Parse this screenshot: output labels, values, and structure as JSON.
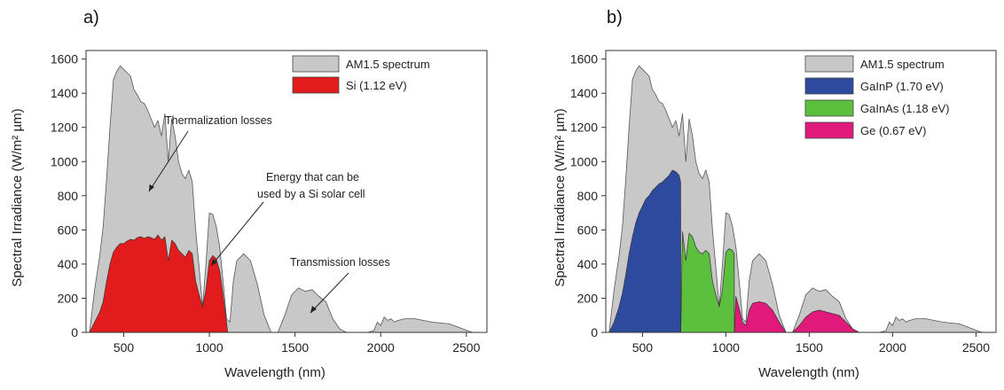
{
  "chart_data": [
    {
      "panel_label": "a)",
      "type": "area",
      "xlabel": "Wavelength (nm)",
      "ylabel": "Spectral Irradiance (W/m² µm)",
      "xlim": [
        280,
        2620
      ],
      "ylim": [
        0,
        1650
      ],
      "x_ticks": [
        500,
        1000,
        1500,
        2000,
        2500
      ],
      "y_ticks": [
        0,
        200,
        400,
        600,
        800,
        1000,
        1200,
        1400,
        1600
      ],
      "grid": false,
      "legend_position": "top-right",
      "series": [
        {
          "name": "AM1.5 spectrum",
          "color": "#c8c8c8",
          "x": [
            300,
            330,
            360,
            380,
            400,
            420,
            440,
            460,
            480,
            500,
            520,
            540,
            560,
            580,
            600,
            620,
            640,
            660,
            680,
            700,
            720,
            740,
            760,
            780,
            800,
            820,
            840,
            860,
            880,
            900,
            920,
            940,
            960,
            980,
            1000,
            1020,
            1040,
            1060,
            1080,
            1100,
            1120,
            1140,
            1160,
            1200,
            1240,
            1280,
            1320,
            1360,
            1400,
            1440,
            1480,
            1520,
            1560,
            1600,
            1640,
            1680,
            1720,
            1760,
            1800,
            1840,
            1880,
            1920,
            1960,
            1980,
            2000,
            2020,
            2040,
            2060,
            2080,
            2100,
            2140,
            2200,
            2300,
            2400,
            2480,
            2520,
            2540
          ],
          "y": [
            0,
            250,
            450,
            620,
            900,
            1200,
            1480,
            1530,
            1560,
            1540,
            1520,
            1500,
            1420,
            1390,
            1350,
            1340,
            1300,
            1250,
            1200,
            1240,
            1150,
            1280,
            1000,
            1250,
            1150,
            1000,
            930,
            900,
            950,
            880,
            600,
            380,
            150,
            400,
            700,
            690,
            620,
            500,
            300,
            80,
            60,
            300,
            420,
            460,
            420,
            280,
            100,
            0,
            0,
            100,
            220,
            260,
            240,
            250,
            210,
            180,
            80,
            20,
            0,
            0,
            0,
            0,
            10,
            60,
            40,
            90,
            70,
            80,
            60,
            70,
            80,
            80,
            60,
            50,
            20,
            5,
            0
          ]
        },
        {
          "name": "Si (1.12 eV)",
          "color": "#e21c1c",
          "x": [
            300,
            330,
            360,
            380,
            400,
            420,
            440,
            460,
            480,
            500,
            520,
            540,
            560,
            580,
            600,
            620,
            640,
            660,
            680,
            700,
            720,
            740,
            760,
            780,
            800,
            820,
            840,
            860,
            880,
            900,
            920,
            940,
            960,
            980,
            1000,
            1020,
            1040,
            1060,
            1080,
            1100,
            1107
          ],
          "y": [
            0,
            60,
            120,
            180,
            300,
            400,
            470,
            500,
            520,
            520,
            535,
            545,
            540,
            555,
            560,
            550,
            560,
            555,
            545,
            570,
            540,
            560,
            420,
            540,
            520,
            480,
            460,
            440,
            480,
            460,
            300,
            220,
            150,
            250,
            420,
            450,
            430,
            360,
            220,
            60,
            0
          ]
        }
      ],
      "annotations": [
        {
          "lines": [
            "Thermalization losses"
          ]
        },
        {
          "lines": [
            "Energy that can be",
            "used by a Si solar cell"
          ]
        },
        {
          "lines": [
            "Transmission losses"
          ]
        }
      ]
    },
    {
      "panel_label": "b)",
      "type": "area",
      "xlabel": "Wavelength (nm)",
      "ylabel": "Spectral Irradiance (W/m² µm)",
      "xlim": [
        280,
        2620
      ],
      "ylim": [
        0,
        1650
      ],
      "x_ticks": [
        500,
        1000,
        1500,
        2000,
        2500
      ],
      "y_ticks": [
        0,
        200,
        400,
        600,
        800,
        1000,
        1200,
        1400,
        1600
      ],
      "grid": false,
      "legend_position": "top-right",
      "series": [
        {
          "name": "AM1.5 spectrum",
          "color": "#c8c8c8",
          "x": [
            300,
            330,
            360,
            380,
            400,
            420,
            440,
            460,
            480,
            500,
            520,
            540,
            560,
            580,
            600,
            620,
            640,
            660,
            680,
            700,
            720,
            740,
            760,
            780,
            800,
            820,
            840,
            860,
            880,
            900,
            920,
            940,
            960,
            980,
            1000,
            1020,
            1040,
            1060,
            1080,
            1100,
            1120,
            1140,
            1160,
            1200,
            1240,
            1280,
            1320,
            1360,
            1400,
            1440,
            1480,
            1520,
            1560,
            1600,
            1640,
            1680,
            1720,
            1760,
            1800,
            1840,
            1880,
            1920,
            1960,
            1980,
            2000,
            2020,
            2040,
            2060,
            2080,
            2100,
            2140,
            2200,
            2300,
            2400,
            2480,
            2520,
            2540
          ],
          "y": [
            0,
            250,
            450,
            620,
            900,
            1200,
            1480,
            1530,
            1560,
            1540,
            1520,
            1500,
            1420,
            1390,
            1350,
            1340,
            1300,
            1250,
            1200,
            1240,
            1150,
            1280,
            1000,
            1250,
            1150,
            1000,
            930,
            900,
            950,
            880,
            600,
            380,
            150,
            400,
            700,
            690,
            620,
            500,
            300,
            80,
            60,
            300,
            420,
            460,
            420,
            280,
            100,
            0,
            0,
            100,
            220,
            260,
            240,
            250,
            210,
            180,
            80,
            20,
            0,
            0,
            0,
            0,
            10,
            60,
            40,
            90,
            70,
            80,
            60,
            70,
            80,
            80,
            60,
            50,
            20,
            5,
            0
          ]
        },
        {
          "name": "GaInP (1.70 eV)",
          "color": "#2e4a9e",
          "x": [
            300,
            330,
            360,
            380,
            400,
            420,
            440,
            460,
            480,
            500,
            520,
            540,
            560,
            580,
            600,
            620,
            640,
            660,
            680,
            700,
            720,
            729,
            730
          ],
          "y": [
            0,
            60,
            150,
            230,
            340,
            460,
            560,
            640,
            700,
            740,
            780,
            800,
            830,
            850,
            870,
            880,
            900,
            920,
            950,
            940,
            920,
            880,
            0
          ]
        },
        {
          "name": "GaInAs (1.18 eV)",
          "color": "#5cbf3d",
          "x": [
            730,
            740,
            760,
            780,
            800,
            820,
            840,
            860,
            880,
            900,
            920,
            940,
            960,
            980,
            1000,
            1020,
            1040,
            1050,
            1051
          ],
          "y": [
            0,
            590,
            420,
            580,
            560,
            500,
            470,
            460,
            480,
            460,
            300,
            220,
            150,
            250,
            470,
            490,
            480,
            460,
            0
          ]
        },
        {
          "name": "Ge (0.67 eV)",
          "color": "#e0197a",
          "x": [
            1051,
            1060,
            1080,
            1100,
            1120,
            1140,
            1160,
            1200,
            1240,
            1280,
            1320,
            1360,
            1400,
            1440,
            1480,
            1520,
            1560,
            1600,
            1640,
            1680,
            1720,
            1760,
            1800,
            1820
          ],
          "y": [
            0,
            210,
            140,
            60,
            40,
            130,
            170,
            180,
            170,
            130,
            60,
            0,
            0,
            40,
            90,
            120,
            130,
            120,
            110,
            100,
            60,
            20,
            0,
            0
          ]
        }
      ]
    }
  ]
}
